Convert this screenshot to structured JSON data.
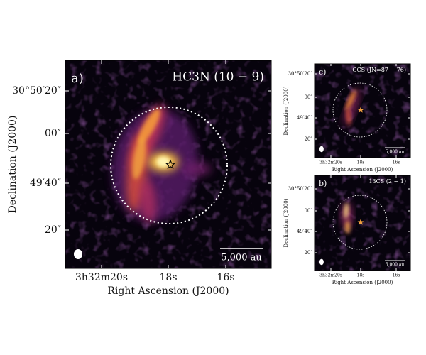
{
  "panels": [
    {
      "label": "a)",
      "line": "HC3N (10 − 9)",
      "yticks": [
        "30°50′20″",
        "00″",
        "49′40″",
        "20″"
      ],
      "xticks": [
        "3h32m20s",
        "18s",
        "16s"
      ],
      "xlabel": "Right Ascension (J2000)",
      "ylabel": "Declination (J2000)",
      "scale_bar": "5,000 au"
    },
    {
      "label": "c)",
      "line": "CCS (JN=87 − 76)",
      "yticks": [
        "30°50′20″",
        "00″",
        "49′40″",
        "20″"
      ],
      "xticks": [
        "3h32m20s",
        "18s",
        "16s"
      ],
      "xlabel": "Right Ascension (J2000)",
      "ylabel": "Declination (J2000)",
      "scale_bar": "5,000 au"
    },
    {
      "label": "b)",
      "line": "13CS (2 − 1)",
      "yticks": [
        "30°50′20″",
        "00″",
        "49′40″",
        "20″"
      ],
      "xticks": [
        "3h32m20s",
        "18s",
        "16s"
      ],
      "xlabel": "Right Ascension (J2000)",
      "ylabel": "Declination (J2000)",
      "scale_bar": "5,000 au"
    }
  ]
}
